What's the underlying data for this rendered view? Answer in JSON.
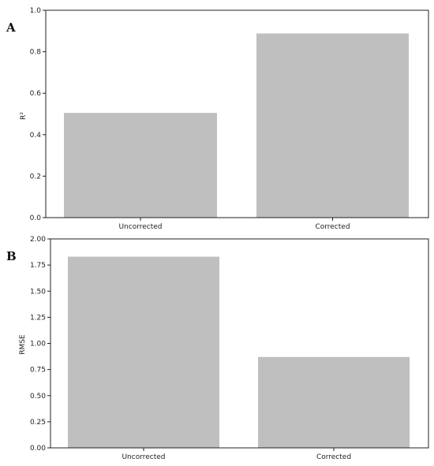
{
  "panels": [
    {
      "letter": "A"
    },
    {
      "letter": "B"
    }
  ],
  "chart_data": [
    {
      "type": "bar",
      "categories": [
        "Uncorrected",
        "Corrected"
      ],
      "values": [
        0.505,
        0.888
      ],
      "xlabel": "",
      "ylabel": "R²",
      "ylim": [
        0,
        1.0
      ],
      "yticks": [
        "0.0",
        "0.2",
        "0.4",
        "0.6",
        "0.8",
        "1.0"
      ],
      "bar_color": "#bfbfbf",
      "grid": false
    },
    {
      "type": "bar",
      "categories": [
        "Uncorrected",
        "Corrected"
      ],
      "values": [
        1.83,
        0.87
      ],
      "xlabel": "",
      "ylabel": "RMSE",
      "ylim": [
        0,
        2.0
      ],
      "yticks": [
        "0.00",
        "0.25",
        "0.50",
        "0.75",
        "1.00",
        "1.25",
        "1.50",
        "1.75",
        "2.00"
      ],
      "bar_color": "#bfbfbf",
      "grid": false
    }
  ]
}
